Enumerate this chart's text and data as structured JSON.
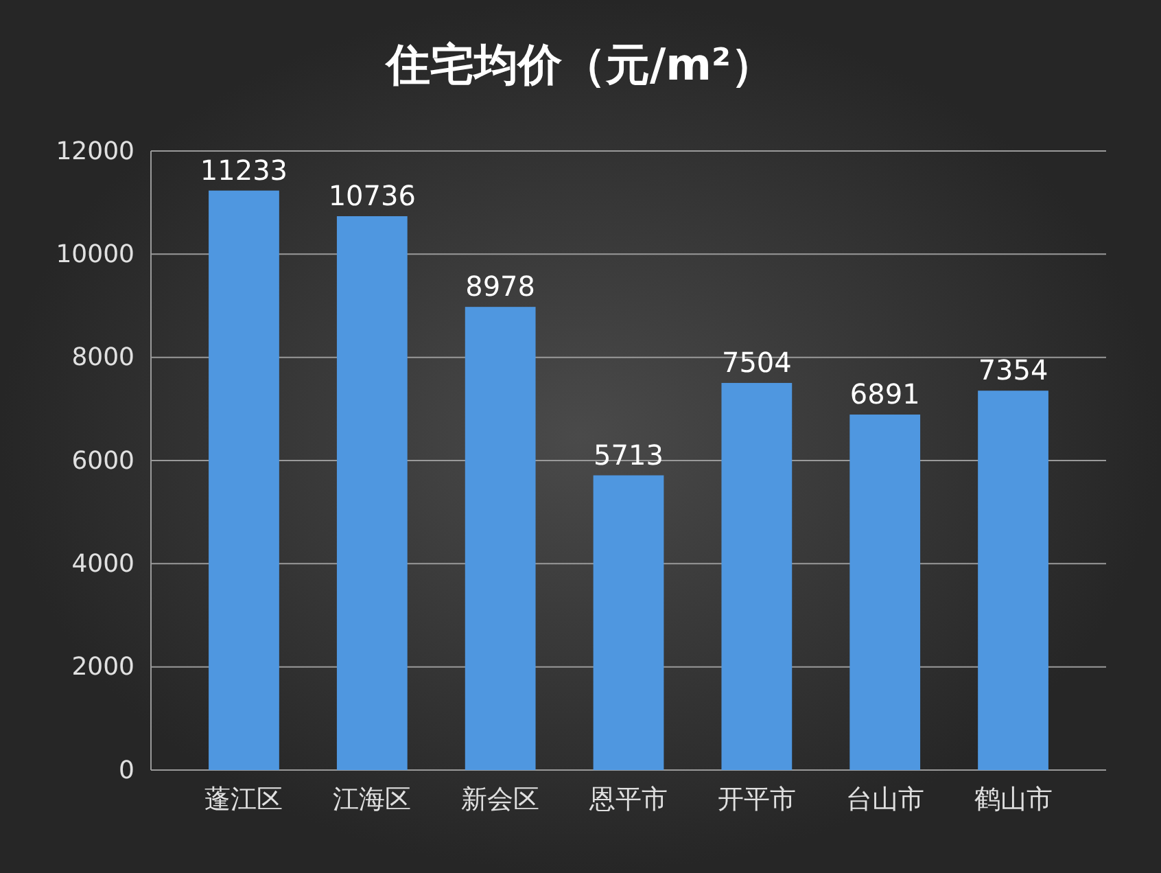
{
  "chart_data": {
    "type": "bar",
    "title": "住宅均价（元/m²）",
    "categories": [
      "蓬江区",
      "江海区",
      "新会区",
      "恩平市",
      "开平市",
      "台山市",
      "鹤山市"
    ],
    "values": [
      11233,
      10736,
      8978,
      5713,
      7504,
      6891,
      7354
    ],
    "color": "#4f97e0",
    "ylim": [
      0,
      12000
    ],
    "yticks": [
      0,
      2000,
      4000,
      6000,
      8000,
      10000,
      12000
    ],
    "grid": "y",
    "data_labels": true
  }
}
